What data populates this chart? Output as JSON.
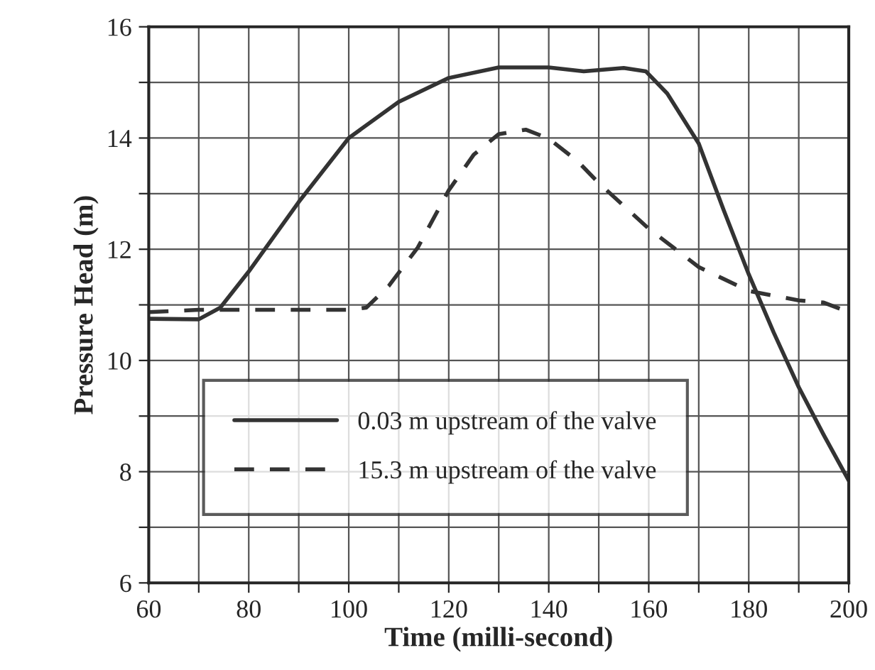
{
  "chart_data": {
    "type": "line",
    "xlabel": "Time (milli-second)",
    "ylabel": "Pressure Head (m)",
    "xlim": [
      60,
      200
    ],
    "ylim": [
      6,
      16
    ],
    "xticks": [
      60,
      {
        "value": 70,
        "label": null
      },
      80,
      {
        "value": 90,
        "label": null
      },
      100,
      {
        "value": 110,
        "label": null
      },
      120,
      {
        "value": 130,
        "label": null
      },
      140,
      {
        "value": 150,
        "label": null
      },
      160,
      {
        "value": 170,
        "label": null
      },
      180,
      {
        "value": 190,
        "label": null
      },
      200
    ],
    "yticks": [
      6,
      {
        "value": 7,
        "label": null
      },
      8,
      {
        "value": 9,
        "label": null
      },
      10,
      {
        "value": 11,
        "label": null
      },
      12,
      {
        "value": 13,
        "label": null
      },
      14,
      {
        "value": 15,
        "label": null
      },
      16
    ],
    "grid": true,
    "legend": "bottom left",
    "series": [
      {
        "name": "0.03 m upstream of the valve",
        "color": "#333333",
        "line_style": "solid",
        "x": [
          60,
          70,
          74.3,
          80,
          90,
          100,
          110,
          120,
          130,
          140,
          147,
          155,
          159.4,
          163.7,
          170,
          175,
          180,
          185,
          190,
          195,
          200
        ],
        "values": [
          10.75,
          10.74,
          10.95,
          11.6,
          12.85,
          14.0,
          14.65,
          15.08,
          15.27,
          15.27,
          15.2,
          15.26,
          15.2,
          14.8,
          13.9,
          12.7,
          11.55,
          10.5,
          9.52,
          8.66,
          7.84
        ]
      },
      {
        "name": "15.3 m upstream of the valve",
        "color": "#333333",
        "line_style": "dashed",
        "x": [
          60,
          70,
          80,
          90,
          100,
          103.5,
          108,
          113.8,
          120,
          125,
          130,
          135.4,
          140,
          145.8,
          150,
          160,
          170,
          180,
          190,
          195,
          200
        ],
        "values": [
          10.87,
          10.91,
          10.91,
          10.91,
          10.91,
          10.95,
          11.34,
          12.03,
          13.06,
          13.7,
          14.07,
          14.15,
          13.99,
          13.58,
          13.19,
          12.37,
          11.68,
          11.25,
          11.08,
          11.04,
          10.87
        ]
      }
    ]
  }
}
